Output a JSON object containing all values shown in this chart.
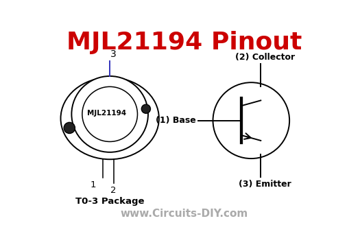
{
  "title": "MJL21194 Pinout",
  "title_color": "#cc0000",
  "title_fontsize": 26,
  "background_color": "#ffffff",
  "package_label": "T0-3 Package",
  "website": "www.Circuits-DIY.com",
  "website_color": "#aaaaaa",
  "chip_label": "MJL21194",
  "line_color": "#000000",
  "line_width": 1.4,
  "pin3_color": "#3333bb"
}
